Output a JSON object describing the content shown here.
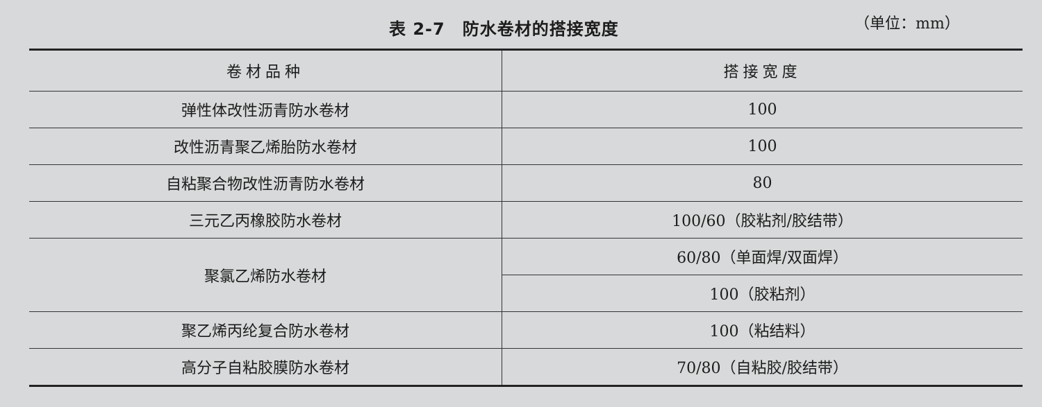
{
  "title": "表 2-7　防水卷材的搭接宽度",
  "unit": "（单位：mm）",
  "headers": [
    "卷材品种",
    "搭接宽度"
  ],
  "rows": [
    {
      "type": "弹性体改性沥青防水卷材",
      "widths": [
        "100"
      ]
    },
    {
      "type": "改性沥青聚乙烯胎防水卷材",
      "widths": [
        "100"
      ]
    },
    {
      "type": "自粘聚合物改性沥青防水卷材",
      "widths": [
        "80"
      ]
    },
    {
      "type": "三元乙丙橡胶防水卷材",
      "widths": [
        "100/60（胶粘剂/胶结带）"
      ]
    },
    {
      "type": "聚氯乙烯防水卷材",
      "widths": [
        "60/80（单面焊/双面焊）",
        "100（胶粘剂）"
      ]
    },
    {
      "type": "聚乙烯丙纶复合防水卷材",
      "widths": [
        "100（粘结料）"
      ]
    },
    {
      "type": "高分子自粘胶膜防水卷材",
      "widths": [
        "70/80（自粘胶/胶结带）"
      ]
    }
  ]
}
